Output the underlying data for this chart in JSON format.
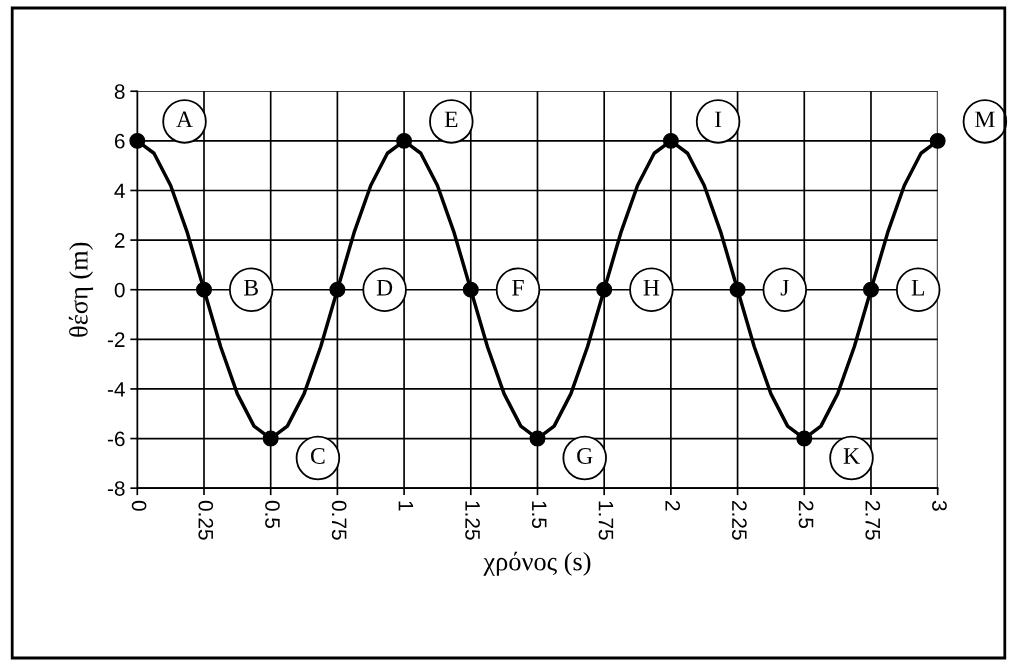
{
  "chart_data": {
    "type": "line",
    "xlabel": "χρόνος (s)",
    "ylabel": "θέση (m)",
    "xlim": [
      0,
      3
    ],
    "xticks": [
      0,
      0.25,
      0.5,
      0.75,
      1,
      1.25,
      1.5,
      1.75,
      2,
      2.25,
      2.5,
      2.75,
      3
    ],
    "ylim": [
      -8,
      8
    ],
    "yticks": [
      -8,
      -6,
      -4,
      -2,
      0,
      2,
      4,
      6,
      8
    ],
    "grid": true,
    "legend": false,
    "series": [
      {
        "color": "#000000",
        "marker": "none",
        "x": [
          0,
          0.0625,
          0.125,
          0.1875,
          0.25,
          0.3125,
          0.375,
          0.4375,
          0.5,
          0.5625,
          0.625,
          0.6875,
          0.75,
          0.8125,
          0.875,
          0.9375,
          1,
          1.0625,
          1.125,
          1.1875,
          1.25,
          1.3125,
          1.375,
          1.4375,
          1.5,
          1.5625,
          1.625,
          1.6875,
          1.75,
          1.8125,
          1.875,
          1.9375,
          2,
          2.0625,
          2.125,
          2.1875,
          2.25,
          2.3125,
          2.375,
          2.4375,
          2.5,
          2.5625,
          2.625,
          2.6875,
          2.75,
          2.8125,
          2.875,
          2.9375,
          3
        ],
        "values": [
          6,
          5.5,
          4.2,
          2.3,
          0,
          -2.3,
          -4.2,
          -5.5,
          -6,
          -5.5,
          -4.2,
          -2.3,
          0,
          2.3,
          4.2,
          5.5,
          6,
          5.5,
          4.2,
          2.3,
          0,
          -2.3,
          -4.2,
          -5.5,
          -6,
          -5.5,
          -4.2,
          -2.3,
          0,
          2.3,
          4.2,
          5.5,
          6,
          5.5,
          4.2,
          2.3,
          0,
          -2.3,
          -4.2,
          -5.5,
          -6,
          -5.5,
          -4.2,
          -2.3,
          0,
          2.3,
          4.2,
          5.5,
          6
        ]
      },
      {
        "type": "scatter",
        "color": "#000000",
        "marker": "circle",
        "x": [
          0,
          0.25,
          0.5,
          0.75,
          1,
          1.25,
          1.5,
          1.75,
          2,
          2.25,
          2.5,
          2.75,
          3
        ],
        "values": [
          6,
          0,
          -6,
          0,
          6,
          0,
          -6,
          0,
          6,
          0,
          -6,
          0,
          6
        ]
      }
    ],
    "annotations": [
      {
        "text": "A",
        "x": 0,
        "y": 6
      },
      {
        "text": "B",
        "x": 0.25,
        "y": 0
      },
      {
        "text": "C",
        "x": 0.5,
        "y": -6
      },
      {
        "text": "D",
        "x": 0.75,
        "y": 0
      },
      {
        "text": "E",
        "x": 1,
        "y": 6
      },
      {
        "text": "F",
        "x": 1.25,
        "y": 0
      },
      {
        "text": "G",
        "x": 1.5,
        "y": -6
      },
      {
        "text": "H",
        "x": 1.75,
        "y": 0
      },
      {
        "text": "I",
        "x": 2,
        "y": 6
      },
      {
        "text": "J",
        "x": 2.25,
        "y": 0
      },
      {
        "text": "K",
        "x": 2.5,
        "y": -6
      },
      {
        "text": "L",
        "x": 2.75,
        "y": 0
      },
      {
        "text": "M",
        "x": 3,
        "y": 6
      }
    ]
  }
}
